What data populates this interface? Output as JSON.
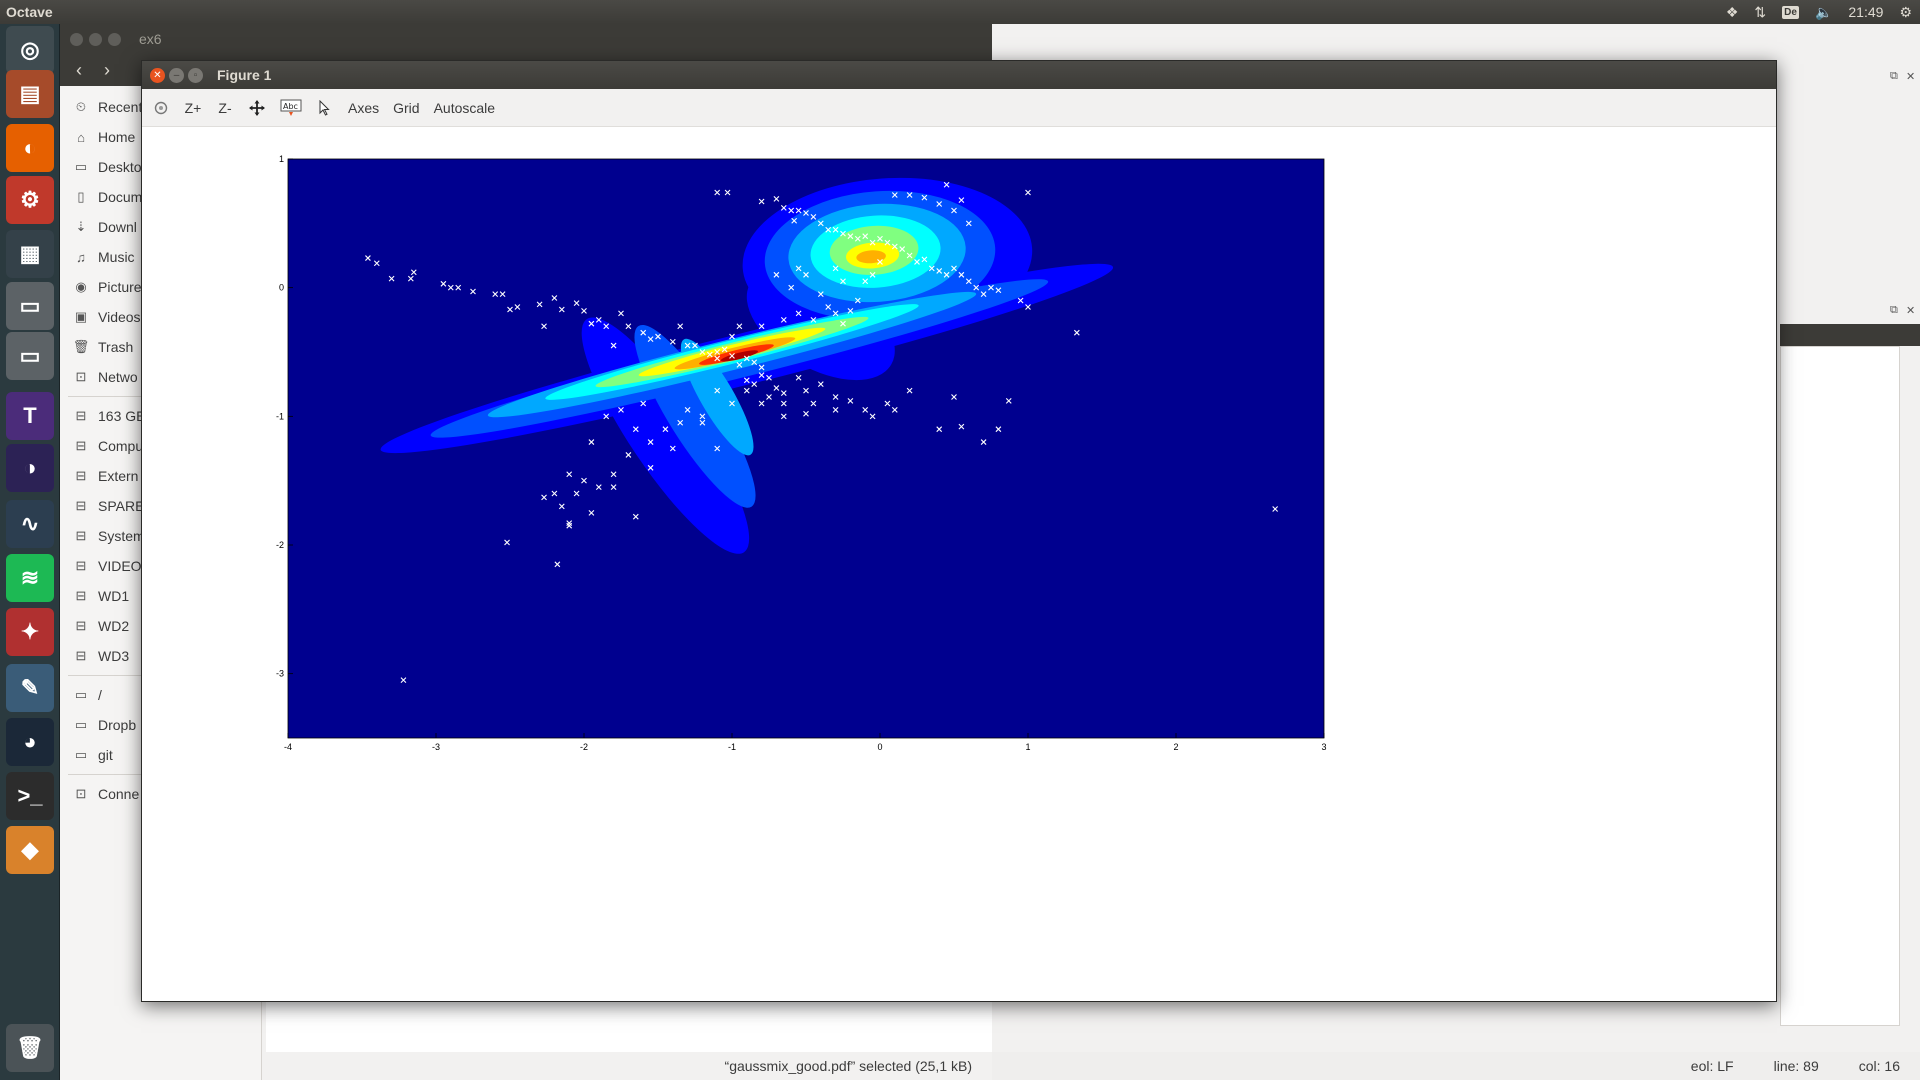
{
  "top_panel": {
    "app_name": "Octave",
    "keyboard_layout": "De",
    "time": "21:49"
  },
  "launcher": {
    "items": [
      {
        "name": "ubuntu-dash",
        "color": "#3f4b50"
      },
      {
        "name": "files",
        "color": "#a64b2a"
      },
      {
        "name": "firefox",
        "color": "#e66000"
      },
      {
        "name": "settings",
        "color": "#c0392b"
      },
      {
        "name": "workspaces",
        "color": "#344149"
      },
      {
        "name": "drive-1",
        "color": "#5c6266"
      },
      {
        "name": "drive-2",
        "color": "#5c6266"
      },
      {
        "name": "texmaker",
        "color": "#4b2c7a"
      },
      {
        "name": "eclipse",
        "color": "#2c2255"
      },
      {
        "name": "system-monitor",
        "color": "#2c3e50"
      },
      {
        "name": "spotify",
        "color": "#1db954"
      },
      {
        "name": "app-red",
        "color": "#b03030"
      },
      {
        "name": "app-tools",
        "color": "#3a5c78"
      },
      {
        "name": "steam",
        "color": "#1b2838"
      },
      {
        "name": "terminal",
        "color": "#2c2c2c"
      },
      {
        "name": "octave",
        "color": "#d9822b"
      },
      {
        "name": "trash",
        "color": "#4b5357"
      }
    ]
  },
  "nautilus": {
    "title": "ex6",
    "sidebar": [
      {
        "icon": "⏲",
        "label": "Recent"
      },
      {
        "icon": "⌂",
        "label": "Home"
      },
      {
        "icon": "▭",
        "label": "Deskto"
      },
      {
        "icon": "▯",
        "label": "Docum"
      },
      {
        "icon": "⇣",
        "label": "Downl"
      },
      {
        "icon": "♫",
        "label": "Music"
      },
      {
        "icon": "◉",
        "label": "Picture"
      },
      {
        "icon": "▣",
        "label": "Videos"
      },
      {
        "icon": "🗑",
        "label": "Trash"
      },
      {
        "icon": "⊡",
        "label": "Netwo"
      }
    ],
    "devices": [
      {
        "icon": "⊟",
        "label": "163 GE"
      },
      {
        "icon": "⊟",
        "label": "Compu"
      },
      {
        "icon": "⊟",
        "label": "Extern"
      },
      {
        "icon": "⊟",
        "label": "SPARE"
      },
      {
        "icon": "⊟",
        "label": "System"
      },
      {
        "icon": "⊟",
        "label": "VIDEO"
      },
      {
        "icon": "⊟",
        "label": "WD1"
      },
      {
        "icon": "⊟",
        "label": "WD2"
      },
      {
        "icon": "⊟",
        "label": "WD3"
      }
    ],
    "bookmarks": [
      {
        "icon": "▭",
        "label": "/"
      },
      {
        "icon": "▭",
        "label": "Dropb"
      },
      {
        "icon": "▭",
        "label": "git"
      }
    ],
    "other": [
      {
        "icon": "⊡",
        "label": "Conne"
      }
    ],
    "status": "“gaussmix_good.pdf” selected  (25,1 kB)"
  },
  "octave_main": {
    "status": {
      "eol": "eol: LF",
      "line": "line: 89",
      "col": "col: 16"
    }
  },
  "figure": {
    "title": "Figure 1",
    "toolbar": {
      "rotate_icon": "rotate-icon",
      "zoom_in": "Z+",
      "zoom_out": "Z-",
      "pan_icon": "pan-icon",
      "text_icon": "insert-text-icon",
      "select_icon": "select-icon",
      "axes": "Axes",
      "grid": "Grid",
      "autoscale": "Autoscale"
    }
  },
  "chart_data": {
    "type": "scatter",
    "title": "",
    "xlabel": "",
    "ylabel": "",
    "xlim": [
      -4,
      3
    ],
    "ylim": [
      -3.5,
      1
    ],
    "xticks": [
      -4,
      -3,
      -2,
      -1,
      0,
      1,
      2,
      3
    ],
    "yticks": [
      1,
      0,
      -1,
      -2,
      -3
    ],
    "background_color": "#00008f",
    "grid": false,
    "overlay": "filled contour of a 2-component gaussian mixture density (jet colormap)",
    "contours": [
      {
        "level": 1,
        "color": "#0000ff",
        "components": [
          {
            "cx": -0.9,
            "cy": -0.55,
            "sx": 2.55,
            "sy": 0.2,
            "rot": -14
          },
          {
            "cx": -1.45,
            "cy": -1.15,
            "sx": 0.95,
            "sy": 0.27,
            "rot": 56
          },
          {
            "cx": 0.05,
            "cy": 0.23,
            "sx": 0.98,
            "sy": 0.62,
            "rot": -4
          },
          {
            "cx": -0.4,
            "cy": -0.28,
            "sx": 0.55,
            "sy": 0.35,
            "rot": 30
          }
        ]
      },
      {
        "level": 2,
        "color": "#0050ff",
        "components": [
          {
            "cx": -0.95,
            "cy": -0.55,
            "sx": 2.15,
            "sy": 0.15,
            "rot": -14
          },
          {
            "cx": -1.25,
            "cy": -1.0,
            "sx": 0.72,
            "sy": 0.2,
            "rot": 58
          },
          {
            "cx": 0.0,
            "cy": 0.25,
            "sx": 0.78,
            "sy": 0.5,
            "rot": -4
          }
        ]
      },
      {
        "level": 3,
        "color": "#00a8ff",
        "components": [
          {
            "cx": -1.0,
            "cy": -0.52,
            "sx": 1.7,
            "sy": 0.12,
            "rot": -14
          },
          {
            "cx": -1.1,
            "cy": -0.85,
            "sx": 0.45,
            "sy": 0.13,
            "rot": 60
          },
          {
            "cx": -0.02,
            "cy": 0.27,
            "sx": 0.6,
            "sy": 0.38,
            "rot": -4
          }
        ]
      },
      {
        "level": 4,
        "color": "#00ffff",
        "components": [
          {
            "cx": -1.0,
            "cy": -0.5,
            "sx": 1.3,
            "sy": 0.09,
            "rot": -14
          },
          {
            "cx": -0.03,
            "cy": 0.28,
            "sx": 0.44,
            "sy": 0.28,
            "rot": -4
          }
        ]
      },
      {
        "level": 5,
        "color": "#80ff80",
        "components": [
          {
            "cx": -1.0,
            "cy": -0.5,
            "sx": 0.95,
            "sy": 0.07,
            "rot": -14
          },
          {
            "cx": -0.04,
            "cy": 0.29,
            "sx": 0.3,
            "sy": 0.19,
            "rot": -4
          }
        ]
      },
      {
        "level": 6,
        "color": "#ffff00",
        "components": [
          {
            "cx": -1.0,
            "cy": -0.5,
            "sx": 0.65,
            "sy": 0.055,
            "rot": -14
          },
          {
            "cx": -0.05,
            "cy": 0.25,
            "sx": 0.18,
            "sy": 0.1,
            "rot": -4
          }
        ]
      },
      {
        "level": 7,
        "color": "#ffb000",
        "components": [
          {
            "cx": -0.98,
            "cy": -0.51,
            "sx": 0.42,
            "sy": 0.045,
            "rot": -14
          },
          {
            "cx": -0.06,
            "cy": 0.24,
            "sx": 0.1,
            "sy": 0.05,
            "rot": -4
          }
        ]
      },
      {
        "level": 8,
        "color": "#ff3000",
        "components": [
          {
            "cx": -0.97,
            "cy": -0.52,
            "sx": 0.26,
            "sy": 0.035,
            "rot": -14
          }
        ]
      },
      {
        "level": 9,
        "color": "#b00000",
        "components": [
          {
            "cx": -0.95,
            "cy": -0.53,
            "sx": 0.13,
            "sy": 0.025,
            "rot": -14
          }
        ]
      }
    ],
    "points": [
      [
        -3.46,
        0.23
      ],
      [
        -3.4,
        0.19
      ],
      [
        -3.3,
        0.07
      ],
      [
        -3.17,
        0.07
      ],
      [
        -3.15,
        0.12
      ],
      [
        -2.95,
        0.03
      ],
      [
        -2.9,
        0.0
      ],
      [
        -2.85,
        0.0
      ],
      [
        -2.75,
        -0.03
      ],
      [
        -2.6,
        -0.05
      ],
      [
        -2.55,
        -0.05
      ],
      [
        -2.5,
        -0.17
      ],
      [
        -2.45,
        -0.15
      ],
      [
        -2.3,
        -0.13
      ],
      [
        -2.27,
        -0.3
      ],
      [
        -2.2,
        -0.08
      ],
      [
        -2.15,
        -0.17
      ],
      [
        -2.05,
        -0.12
      ],
      [
        -2.0,
        -0.18
      ],
      [
        -1.95,
        -0.28
      ],
      [
        -1.9,
        -0.25
      ],
      [
        -1.85,
        -0.3
      ],
      [
        -1.8,
        -0.45
      ],
      [
        -1.75,
        -0.2
      ],
      [
        -1.7,
        -0.3
      ],
      [
        -1.6,
        -0.35
      ],
      [
        -1.55,
        -0.4
      ],
      [
        -1.5,
        -0.38
      ],
      [
        -1.4,
        -0.42
      ],
      [
        -1.35,
        -0.3
      ],
      [
        -1.3,
        -0.45
      ],
      [
        -1.25,
        -0.45
      ],
      [
        -1.2,
        -0.5
      ],
      [
        -1.15,
        -0.52
      ],
      [
        -1.1,
        -0.55
      ],
      [
        -1.05,
        -0.48
      ],
      [
        -1.0,
        -0.53
      ],
      [
        -0.95,
        -0.6
      ],
      [
        -0.9,
        -0.55
      ],
      [
        -0.85,
        -0.58
      ],
      [
        -0.8,
        -0.62
      ],
      [
        -0.75,
        -0.7
      ],
      [
        -0.7,
        -0.78
      ],
      [
        -0.65,
        -0.82
      ],
      [
        -0.55,
        -0.7
      ],
      [
        -0.5,
        -0.8
      ],
      [
        -0.4,
        -0.75
      ],
      [
        -0.3,
        -0.85
      ],
      [
        -0.2,
        -0.88
      ],
      [
        -0.1,
        -0.95
      ],
      [
        -0.05,
        -1.0
      ],
      [
        0.05,
        -0.9
      ],
      [
        0.1,
        -0.95
      ],
      [
        0.2,
        -0.8
      ],
      [
        0.4,
        -1.1
      ],
      [
        0.5,
        -0.85
      ],
      [
        0.55,
        -1.08
      ],
      [
        0.7,
        -1.2
      ],
      [
        0.8,
        -1.1
      ],
      [
        0.87,
        -0.88
      ],
      [
        -0.8,
        -0.68
      ],
      [
        -0.85,
        -0.75
      ],
      [
        -0.9,
        -0.72
      ],
      [
        -1.1,
        -0.5
      ],
      [
        -0.65,
        -0.9
      ],
      [
        -0.65,
        -1.0
      ],
      [
        -0.75,
        -0.85
      ],
      [
        -0.9,
        -0.8
      ],
      [
        -1.0,
        -0.9
      ],
      [
        -1.1,
        -0.8
      ],
      [
        -1.2,
        -1.0
      ],
      [
        -1.3,
        -0.95
      ],
      [
        -1.35,
        -1.05
      ],
      [
        -1.45,
        -1.1
      ],
      [
        -1.55,
        -1.2
      ],
      [
        -1.6,
        -0.9
      ],
      [
        -1.65,
        -1.1
      ],
      [
        -1.7,
        -1.3
      ],
      [
        -1.75,
        -0.95
      ],
      [
        -1.8,
        -1.45
      ],
      [
        -1.85,
        -1.0
      ],
      [
        -1.9,
        -1.55
      ],
      [
        -1.95,
        -1.2
      ],
      [
        -2.0,
        -1.5
      ],
      [
        -2.05,
        -1.6
      ],
      [
        -2.1,
        -1.45
      ],
      [
        -2.15,
        -1.7
      ],
      [
        -2.2,
        -1.6
      ],
      [
        -2.27,
        -1.63
      ],
      [
        -2.1,
        -1.85
      ],
      [
        -2.1,
        -1.83
      ],
      [
        -1.95,
        -1.75
      ],
      [
        -1.8,
        -1.55
      ],
      [
        -1.65,
        -1.78
      ],
      [
        -1.55,
        -1.4
      ],
      [
        -1.4,
        -1.25
      ],
      [
        -1.2,
        -1.05
      ],
      [
        -1.1,
        -1.25
      ],
      [
        -0.8,
        -0.9
      ],
      [
        -0.5,
        -0.98
      ],
      [
        -0.45,
        -0.9
      ],
      [
        -0.3,
        -0.95
      ],
      [
        -2.52,
        -1.98
      ],
      [
        -2.18,
        -2.15
      ],
      [
        -3.22,
        -3.05
      ],
      [
        -1.1,
        0.74
      ],
      [
        -1.03,
        0.74
      ],
      [
        -0.8,
        0.67
      ],
      [
        -0.7,
        0.69
      ],
      [
        -0.65,
        0.62
      ],
      [
        -0.6,
        0.6
      ],
      [
        -0.58,
        0.52
      ],
      [
        -0.55,
        0.6
      ],
      [
        -0.5,
        0.58
      ],
      [
        -0.45,
        0.55
      ],
      [
        -0.4,
        0.5
      ],
      [
        -0.35,
        0.45
      ],
      [
        -0.3,
        0.45
      ],
      [
        -0.25,
        0.42
      ],
      [
        -0.2,
        0.4
      ],
      [
        -0.15,
        0.38
      ],
      [
        -0.1,
        0.4
      ],
      [
        -0.05,
        0.35
      ],
      [
        0.0,
        0.38
      ],
      [
        0.05,
        0.35
      ],
      [
        0.1,
        0.32
      ],
      [
        0.15,
        0.3
      ],
      [
        0.2,
        0.25
      ],
      [
        0.25,
        0.2
      ],
      [
        0.3,
        0.22
      ],
      [
        0.35,
        0.15
      ],
      [
        0.4,
        0.13
      ],
      [
        0.45,
        0.1
      ],
      [
        0.5,
        0.15
      ],
      [
        0.55,
        0.1
      ],
      [
        0.6,
        0.05
      ],
      [
        0.65,
        0.0
      ],
      [
        0.7,
        -0.05
      ],
      [
        0.75,
        0.0
      ],
      [
        0.8,
        -0.02
      ],
      [
        0.95,
        -0.1
      ],
      [
        1.0,
        -0.15
      ],
      [
        0.1,
        0.72
      ],
      [
        0.2,
        0.72
      ],
      [
        0.3,
        0.7
      ],
      [
        0.4,
        0.65
      ],
      [
        0.45,
        0.8
      ],
      [
        0.5,
        0.6
      ],
      [
        0.55,
        0.68
      ],
      [
        0.6,
        0.5
      ],
      [
        1.0,
        0.74
      ],
      [
        1.33,
        -0.35
      ],
      [
        -0.5,
        0.1
      ],
      [
        -0.55,
        0.15
      ],
      [
        -0.6,
        0.0
      ],
      [
        -0.55,
        -0.2
      ],
      [
        -0.45,
        -0.25
      ],
      [
        -0.4,
        -0.05
      ],
      [
        -0.35,
        -0.15
      ],
      [
        -0.3,
        -0.2
      ],
      [
        -0.25,
        -0.28
      ],
      [
        -0.2,
        -0.18
      ],
      [
        -0.15,
        -0.1
      ],
      [
        -0.1,
        0.05
      ],
      [
        -0.05,
        0.1
      ],
      [
        0.0,
        0.2
      ],
      [
        -0.25,
        0.05
      ],
      [
        -0.3,
        0.15
      ],
      [
        -0.7,
        0.1
      ],
      [
        -0.65,
        -0.25
      ],
      [
        -0.8,
        -0.3
      ],
      [
        -0.95,
        -0.3
      ],
      [
        -1.0,
        -0.38
      ],
      [
        2.67,
        -1.72
      ]
    ]
  }
}
